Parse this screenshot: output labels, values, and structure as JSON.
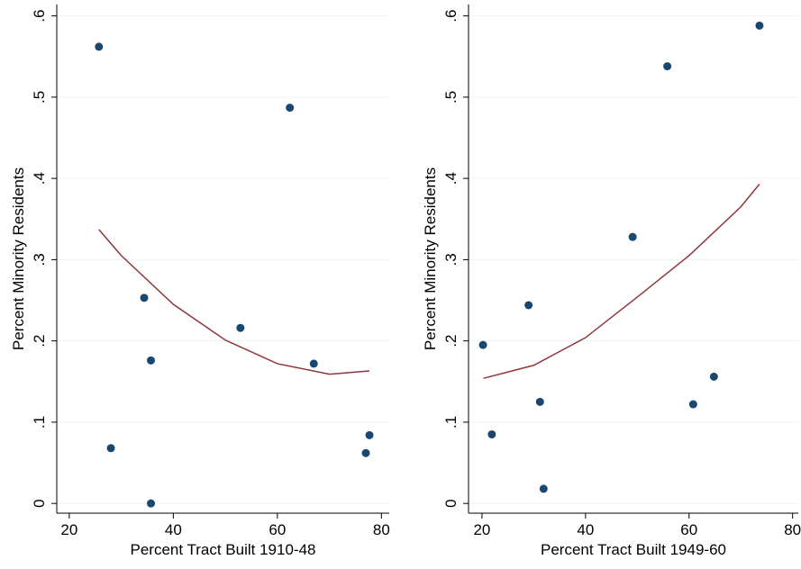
{
  "chart_data": [
    {
      "type": "scatter",
      "xlabel": "Percent Tract Built 1910-48",
      "ylabel": "Percent Minority Residents",
      "xlim": [
        17.6,
        81.5
      ],
      "ylim": [
        -0.012,
        0.614
      ],
      "xticks": [
        20,
        40,
        60,
        80
      ],
      "yticks": [
        0,
        {
          "value": 0.1,
          "label": ".1"
        },
        {
          "value": 0.2,
          "label": ".2"
        },
        {
          "value": 0.3,
          "label": ".3"
        },
        {
          "value": 0.4,
          "label": ".4"
        },
        {
          "value": 0.5,
          "label": ".5"
        },
        {
          "value": 0.6,
          "label": ".6"
        }
      ],
      "grid": true,
      "series": [
        {
          "type": "scatter",
          "color": "#1a476f",
          "x": [
            25.7,
            62.4,
            34.4,
            35.7,
            52.9,
            67.0,
            28.0,
            35.7,
            77.0,
            77.7
          ],
          "values": [
            0.562,
            0.487,
            0.253,
            0.176,
            0.216,
            0.172,
            0.068,
            0.0,
            0.062,
            0.084
          ]
        },
        {
          "type": "line",
          "color": "#90353b",
          "x": [
            25.7,
            30,
            40,
            50,
            60,
            70,
            77.7
          ],
          "values": [
            0.337,
            0.305,
            0.245,
            0.201,
            0.172,
            0.159,
            0.163
          ]
        }
      ]
    },
    {
      "type": "scatter",
      "xlabel": "Percent Tract Built 1949-60",
      "ylabel": "Percent Minority Residents",
      "xlim": [
        17.4,
        81.1
      ],
      "ylim": [
        -0.012,
        0.614
      ],
      "xticks": [
        20,
        40,
        60,
        80
      ],
      "yticks": [
        0,
        {
          "value": 0.1,
          "label": ".1"
        },
        {
          "value": 0.2,
          "label": ".2"
        },
        {
          "value": 0.3,
          "label": ".3"
        },
        {
          "value": 0.4,
          "label": ".4"
        },
        {
          "value": 0.5,
          "label": ".5"
        },
        {
          "value": 0.6,
          "label": ".6"
        }
      ],
      "grid": true,
      "series": [
        {
          "type": "scatter",
          "color": "#1a476f",
          "x": [
            20.2,
            21.9,
            29.0,
            31.2,
            31.9,
            49.1,
            55.8,
            60.8,
            64.8,
            73.6
          ],
          "values": [
            0.195,
            0.085,
            0.244,
            0.125,
            0.018,
            0.328,
            0.538,
            0.122,
            0.156,
            0.588
          ]
        },
        {
          "type": "line",
          "color": "#90353b",
          "x": [
            20.3,
            30,
            40,
            50,
            60,
            70,
            73.6
          ],
          "values": [
            0.154,
            0.17,
            0.204,
            0.254,
            0.305,
            0.365,
            0.393
          ]
        }
      ]
    }
  ]
}
